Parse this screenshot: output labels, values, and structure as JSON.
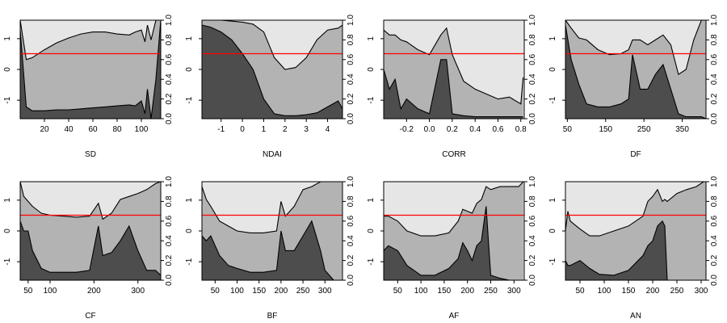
{
  "chart_data": [
    {
      "type": "area",
      "xlabel": "SD",
      "x": [
        0,
        5,
        10,
        20,
        30,
        40,
        50,
        60,
        70,
        80,
        90,
        95,
        100,
        103,
        105,
        108,
        112,
        116
      ],
      "xlim": [
        0,
        116
      ],
      "xticks": [
        "20",
        "40",
        "60",
        "80",
        "100"
      ],
      "xtick_values": [
        20,
        40,
        60,
        80,
        100
      ],
      "lower": [
        0.9,
        0.12,
        0.08,
        0.08,
        0.09,
        0.09,
        0.1,
        0.11,
        0.12,
        0.13,
        0.14,
        0.13,
        0.18,
        0.05,
        0.3,
        0.0,
        0.4,
        1.0
      ],
      "upper": [
        1.0,
        0.6,
        0.62,
        0.7,
        0.77,
        0.82,
        0.86,
        0.88,
        0.88,
        0.86,
        0.85,
        0.88,
        0.9,
        0.78,
        0.95,
        0.8,
        1.0,
        1.0
      ],
      "threshold": 0.66
    },
    {
      "type": "area",
      "xlabel": "NDAI",
      "x": [
        -1.9,
        -1.5,
        -1.0,
        -0.5,
        0,
        0.5,
        1.0,
        1.5,
        2.0,
        2.5,
        3.0,
        3.5,
        4.0,
        4.5,
        4.7
      ],
      "xlim": [
        -1.9,
        4.7
      ],
      "xticks": [
        "-1",
        "0",
        "1",
        "2",
        "3",
        "4"
      ],
      "xtick_values": [
        -1,
        0,
        1,
        2,
        3,
        4
      ],
      "lower": [
        0.95,
        0.93,
        0.88,
        0.8,
        0.66,
        0.5,
        0.2,
        0.05,
        0.03,
        0.03,
        0.04,
        0.06,
        0.12,
        0.18,
        0.1
      ],
      "upper": [
        1.0,
        1.0,
        1.0,
        0.99,
        0.98,
        0.96,
        0.88,
        0.62,
        0.5,
        0.52,
        0.62,
        0.8,
        0.9,
        0.92,
        0.95
      ],
      "threshold": 0.66
    },
    {
      "type": "area",
      "xlabel": "CORR",
      "x": [
        -0.4,
        -0.35,
        -0.3,
        -0.25,
        -0.2,
        -0.1,
        0,
        0.1,
        0.15,
        0.2,
        0.3,
        0.4,
        0.5,
        0.6,
        0.7,
        0.8,
        0.82
      ],
      "xlim": [
        -0.4,
        0.83
      ],
      "xticks": [
        "-0.2",
        "0.0",
        "0.2",
        "0.4",
        "0.6",
        "0.8"
      ],
      "xtick_values": [
        -0.2,
        0,
        0.2,
        0.4,
        0.6,
        0.8
      ],
      "lower": [
        0.5,
        0.3,
        0.4,
        0.1,
        0.2,
        0.1,
        0.05,
        0.6,
        0.6,
        0.05,
        0.03,
        0.02,
        0.02,
        0.02,
        0.02,
        0.02,
        0.02
      ],
      "upper": [
        0.9,
        0.85,
        0.85,
        0.8,
        0.78,
        0.7,
        0.65,
        0.85,
        0.92,
        0.65,
        0.38,
        0.3,
        0.25,
        0.2,
        0.22,
        0.15,
        0.42
      ],
      "threshold": 0.66
    },
    {
      "type": "area",
      "xlabel": "DF",
      "x": [
        45,
        60,
        80,
        100,
        130,
        160,
        190,
        210,
        220,
        240,
        260,
        280,
        300,
        320,
        340,
        360,
        380,
        400,
        412
      ],
      "xlim": [
        45,
        412
      ],
      "xticks": [
        "50",
        "150",
        "250",
        "350"
      ],
      "xtick_values": [
        50,
        150,
        250,
        350
      ],
      "lower": [
        0.95,
        0.6,
        0.35,
        0.15,
        0.12,
        0.12,
        0.15,
        0.2,
        0.65,
        0.3,
        0.3,
        0.45,
        0.55,
        0.3,
        0.05,
        0.02,
        0.02,
        0.02,
        0.0
      ],
      "upper": [
        1.0,
        0.92,
        0.82,
        0.8,
        0.7,
        0.65,
        0.66,
        0.7,
        0.8,
        0.8,
        0.75,
        0.8,
        0.85,
        0.75,
        0.45,
        0.5,
        0.8,
        1.0,
        1.0
      ],
      "threshold": 0.66
    },
    {
      "type": "area",
      "xlabel": "CF",
      "x": [
        32,
        40,
        50,
        60,
        80,
        100,
        130,
        160,
        190,
        210,
        220,
        240,
        260,
        280,
        300,
        320,
        340,
        352
      ],
      "xlim": [
        32,
        352
      ],
      "xticks": [
        "50",
        "100",
        "200",
        "300"
      ],
      "xtick_values": [
        50,
        100,
        200,
        300
      ],
      "lower": [
        0.6,
        0.5,
        0.5,
        0.3,
        0.12,
        0.08,
        0.08,
        0.08,
        0.1,
        0.55,
        0.25,
        0.28,
        0.4,
        0.55,
        0.3,
        0.1,
        0.1,
        0.05
      ],
      "upper": [
        1.0,
        0.85,
        0.8,
        0.75,
        0.68,
        0.66,
        0.65,
        0.64,
        0.65,
        0.78,
        0.62,
        0.68,
        0.82,
        0.85,
        0.88,
        0.92,
        0.98,
        1.0
      ],
      "threshold": 0.66
    },
    {
      "type": "area",
      "xlabel": "BF",
      "x": [
        20,
        30,
        40,
        60,
        80,
        100,
        130,
        160,
        190,
        200,
        210,
        230,
        250,
        270,
        290,
        300,
        320,
        340
      ],
      "xlim": [
        20,
        340
      ],
      "xticks": [
        "50",
        "100",
        "150",
        "200",
        "250",
        "300"
      ],
      "xtick_values": [
        50,
        100,
        150,
        200,
        250,
        300
      ],
      "lower": [
        0.45,
        0.4,
        0.45,
        0.25,
        0.15,
        0.12,
        0.08,
        0.08,
        0.1,
        0.5,
        0.3,
        0.3,
        0.45,
        0.6,
        0.3,
        0.1,
        0.0,
        0.0
      ],
      "upper": [
        0.95,
        0.82,
        0.75,
        0.6,
        0.55,
        0.5,
        0.48,
        0.48,
        0.5,
        0.8,
        0.65,
        0.75,
        0.92,
        0.95,
        1.0,
        1.0,
        1.0,
        1.0
      ],
      "threshold": 0.66
    },
    {
      "type": "area",
      "xlabel": "AF",
      "x": [
        20,
        30,
        50,
        70,
        100,
        130,
        160,
        180,
        190,
        200,
        210,
        220,
        230,
        240,
        250,
        270,
        290,
        310,
        320
      ],
      "xlim": [
        20,
        322
      ],
      "xticks": [
        "50",
        "100",
        "150",
        "200",
        "250",
        "300"
      ],
      "xtick_values": [
        50,
        100,
        150,
        200,
        250,
        300
      ],
      "lower": [
        0.3,
        0.35,
        0.3,
        0.15,
        0.05,
        0.05,
        0.12,
        0.22,
        0.38,
        0.3,
        0.2,
        0.35,
        0.4,
        0.75,
        0.05,
        0.02,
        0.0,
        0.0,
        0.0
      ],
      "upper": [
        0.65,
        0.65,
        0.6,
        0.5,
        0.45,
        0.45,
        0.48,
        0.6,
        0.72,
        0.7,
        0.68,
        0.78,
        0.82,
        0.95,
        0.92,
        0.95,
        0.95,
        0.95,
        1.0
      ],
      "threshold": 0.66
    },
    {
      "type": "area",
      "xlabel": "AN",
      "x": [
        20,
        25,
        30,
        50,
        70,
        90,
        120,
        150,
        180,
        190,
        200,
        210,
        220,
        225,
        230,
        250,
        270,
        290,
        305,
        310
      ],
      "xlim": [
        20,
        310
      ],
      "xticks": [
        "50",
        "100",
        "150",
        "200",
        "250",
        "300"
      ],
      "xtick_values": [
        50,
        100,
        150,
        200,
        250,
        300
      ],
      "lower": [
        0.2,
        0.15,
        0.15,
        0.2,
        0.12,
        0.06,
        0.05,
        0.1,
        0.25,
        0.35,
        0.4,
        0.55,
        0.6,
        0.55,
        0.0,
        0.0,
        0.0,
        0.0,
        0.0,
        0.0
      ],
      "upper": [
        0.5,
        0.7,
        0.6,
        0.52,
        0.45,
        0.45,
        0.5,
        0.55,
        0.65,
        0.8,
        0.85,
        0.92,
        0.8,
        0.82,
        0.8,
        0.88,
        0.92,
        0.95,
        1.0,
        1.0
      ],
      "threshold": 0.66
    }
  ],
  "left_axis": {
    "ticks": [
      "-1",
      "0",
      "1"
    ],
    "tick_values": [
      -1,
      0,
      1
    ],
    "range": [
      -1.6,
      1.6
    ]
  },
  "right_axis": {
    "ticks": [
      "0.0",
      "0.2",
      "0.4",
      "0.6",
      "0.8",
      "1.0"
    ],
    "tick_values": [
      0,
      0.2,
      0.4,
      0.6,
      0.8,
      1.0
    ]
  },
  "colors": {
    "lower_fill": "#4d4d4d",
    "middle_fill": "#b3b3b3",
    "upper_fill": "#e6e6e6",
    "threshold_line": "#ff0000",
    "stroke": "#000000"
  }
}
